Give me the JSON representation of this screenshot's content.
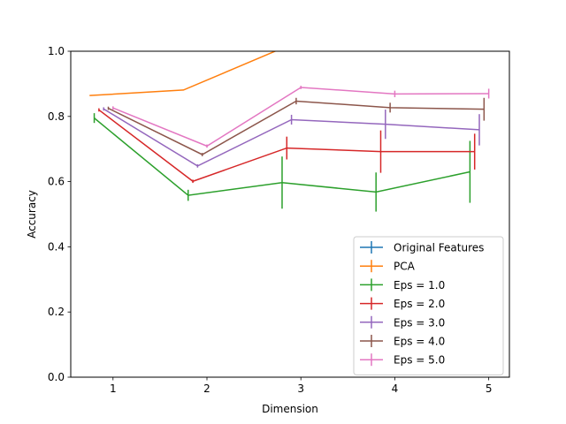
{
  "chart_data": {
    "type": "line",
    "title": "",
    "xlabel": "Dimension",
    "ylabel": "Accuracy",
    "xlim": [
      0.55,
      5.22
    ],
    "ylim": [
      0.0,
      1.0
    ],
    "xticks": [
      1,
      2,
      3,
      4,
      5
    ],
    "yticks": [
      0.0,
      0.2,
      0.4,
      0.6,
      0.8,
      1.0
    ],
    "xtick_labels": [
      "1",
      "2",
      "3",
      "4",
      "5"
    ],
    "ytick_labels": [
      "0.0",
      "0.2",
      "0.4",
      "0.6",
      "0.8",
      "1.0"
    ],
    "grid": false,
    "legend_position": "lower-right",
    "error_bars": true,
    "series": [
      {
        "name": "Original Features",
        "color": "#1f77b4",
        "x": [],
        "y": [],
        "yerr": []
      },
      {
        "name": "PCA",
        "color": "#ff7f0e",
        "x": [
          0.75,
          1.75,
          2.75
        ],
        "y": [
          0.864,
          0.881,
          1.003
        ],
        "yerr": [
          0,
          0,
          0
        ]
      },
      {
        "name": "Eps = 1.0",
        "color": "#2ca02c",
        "x": [
          0.8,
          1.8,
          2.8,
          3.8,
          4.8
        ],
        "y": [
          0.795,
          0.558,
          0.597,
          0.568,
          0.63
        ],
        "yerr": [
          0.015,
          0.017,
          0.08,
          0.06,
          0.095
        ]
      },
      {
        "name": "Eps = 2.0",
        "color": "#d62728",
        "x": [
          0.85,
          1.85,
          2.85,
          3.85,
          4.85
        ],
        "y": [
          0.82,
          0.601,
          0.703,
          0.692,
          0.692
        ],
        "yerr": [
          0.005,
          0.005,
          0.035,
          0.065,
          0.055
        ]
      },
      {
        "name": "Eps = 3.0",
        "color": "#9467bd",
        "x": [
          0.9,
          1.9,
          2.9,
          3.9,
          4.9
        ],
        "y": [
          0.823,
          0.648,
          0.79,
          0.776,
          0.759
        ],
        "yerr": [
          0.005,
          0.005,
          0.015,
          0.045,
          0.048
        ]
      },
      {
        "name": "Eps = 4.0",
        "color": "#8c564b",
        "x": [
          0.95,
          1.95,
          2.95,
          3.95,
          4.95
        ],
        "y": [
          0.825,
          0.683,
          0.847,
          0.827,
          0.822
        ],
        "yerr": [
          0.005,
          0.005,
          0.01,
          0.015,
          0.035
        ]
      },
      {
        "name": "Eps = 5.0",
        "color": "#e377c2",
        "x": [
          1.0,
          2.0,
          3.0,
          4.0,
          5.0
        ],
        "y": [
          0.826,
          0.709,
          0.889,
          0.869,
          0.87
        ],
        "yerr": [
          0.005,
          0.005,
          0.005,
          0.01,
          0.015
        ]
      }
    ]
  }
}
